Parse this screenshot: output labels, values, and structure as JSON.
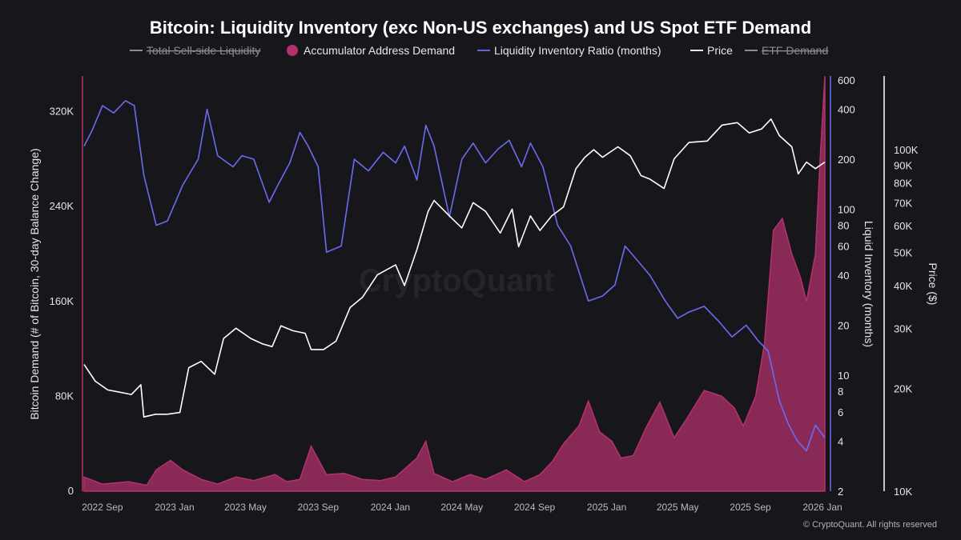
{
  "chart_data": {
    "type": "line",
    "title": "Bitcoin: Liquidity Inventory (exc Non-US exchanges) and US Spot ETF Demand",
    "legend": {
      "placement": "top-center",
      "items": [
        {
          "label": "Total Sell-side Liquidity",
          "color": "#9a9aa2",
          "marker": "line",
          "hidden": true
        },
        {
          "label": "Accumulator Address Demand",
          "color": "#b5316d",
          "marker": "dot",
          "hidden": false
        },
        {
          "label": "Liquidity Inventory Ratio (months)",
          "color": "#6b6bf2",
          "marker": "line",
          "hidden": false
        },
        {
          "label": "Price",
          "color": "#ffffff",
          "marker": "line",
          "hidden": false
        },
        {
          "label": "ETF Demand",
          "color": "#9a9aa2",
          "marker": "line",
          "hidden": true
        }
      ]
    },
    "x_ticks": [
      "2022 Sep",
      "2023 Jan",
      "2023 May",
      "2023 Sep",
      "2024 Jan",
      "2024 May",
      "2024 Sep",
      "2025 Jan",
      "2025 May",
      "2025 Sep",
      "2026 Jan"
    ],
    "y_left": {
      "label": "Bitcoin Demand (# of Bitcoin, 30-day Balance Change)",
      "ticks": [
        "0",
        "80K",
        "160K",
        "240K",
        "320K"
      ],
      "range": [
        0,
        340000
      ]
    },
    "y_right1": {
      "label": "Liquid Inventory (months)",
      "scale": "log",
      "ticks": [
        "2",
        "4",
        "6",
        "8",
        "10",
        "20",
        "40",
        "60",
        "80",
        "100",
        "200",
        "400",
        "600"
      ],
      "range": [
        2,
        600
      ]
    },
    "y_right2": {
      "label": "Price ($)",
      "scale": "log",
      "ticks": [
        "10K",
        "20K",
        "30K",
        "40K",
        "50K",
        "60K",
        "70K",
        "80K",
        "90K",
        "100K"
      ],
      "range": [
        10000,
        160000
      ]
    },
    "grid": false,
    "x_range": [
      "2022-08-01",
      "2026-01-05"
    ],
    "series": [
      {
        "name": "Accumulator Address Demand",
        "kind": "area",
        "axis": "left",
        "color": "#b5316d",
        "x": [
          "2022-08-01",
          "2022-09-01",
          "2022-10-15",
          "2022-11-15",
          "2022-12-01",
          "2022-12-25",
          "2023-01-15",
          "2023-02-15",
          "2023-03-15",
          "2023-04-15",
          "2023-05-15",
          "2023-06-20",
          "2023-07-10",
          "2023-08-01",
          "2023-08-20",
          "2023-09-15",
          "2023-10-15",
          "2023-11-15",
          "2023-12-15",
          "2024-01-10",
          "2024-02-15",
          "2024-03-01",
          "2024-03-15",
          "2024-04-15",
          "2024-05-15",
          "2024-06-10",
          "2024-07-15",
          "2024-08-15",
          "2024-09-10",
          "2024-10-01",
          "2024-10-20",
          "2024-11-15",
          "2024-12-01",
          "2024-12-20",
          "2025-01-10",
          "2025-01-25",
          "2025-02-15",
          "2025-03-10",
          "2025-04-01",
          "2025-04-25",
          "2025-05-15",
          "2025-06-15",
          "2025-07-15",
          "2025-08-05",
          "2025-08-20",
          "2025-09-10",
          "2025-09-25",
          "2025-10-10",
          "2025-10-25",
          "2025-11-10",
          "2025-11-25",
          "2025-12-05",
          "2025-12-20",
          "2025-12-28",
          "2026-01-05"
        ],
        "values": [
          12000,
          6000,
          8000,
          5000,
          18000,
          26000,
          18000,
          10000,
          6000,
          12000,
          9000,
          14000,
          8000,
          10000,
          38000,
          14000,
          15000,
          10000,
          9000,
          12000,
          28000,
          42000,
          15000,
          8000,
          14000,
          10000,
          18000,
          8000,
          14000,
          25000,
          40000,
          55000,
          76000,
          50000,
          42000,
          28000,
          30000,
          55000,
          75000,
          45000,
          60000,
          85000,
          80000,
          70000,
          55000,
          80000,
          125000,
          220000,
          230000,
          200000,
          180000,
          160000,
          200000,
          280000,
          350000
        ]
      },
      {
        "name": "Liquidity Inventory Ratio (months)",
        "kind": "line",
        "axis": "right1",
        "color": "#6b6bf2",
        "x": [
          "2022-08-01",
          "2022-08-15",
          "2022-09-01",
          "2022-09-20",
          "2022-10-10",
          "2022-10-25",
          "2022-11-10",
          "2022-12-01",
          "2022-12-20",
          "2023-01-15",
          "2023-02-10",
          "2023-02-25",
          "2023-03-15",
          "2023-04-10",
          "2023-04-25",
          "2023-05-15",
          "2023-06-10",
          "2023-06-25",
          "2023-07-15",
          "2023-08-01",
          "2023-08-15",
          "2023-09-01",
          "2023-09-15",
          "2023-10-10",
          "2023-11-01",
          "2023-11-25",
          "2023-12-20",
          "2024-01-10",
          "2024-01-25",
          "2024-02-15",
          "2024-03-01",
          "2024-03-15",
          "2024-04-10",
          "2024-05-01",
          "2024-05-20",
          "2024-06-10",
          "2024-07-01",
          "2024-07-20",
          "2024-08-10",
          "2024-08-25",
          "2024-09-15",
          "2024-10-10",
          "2024-11-01",
          "2024-12-01",
          "2024-12-25",
          "2025-01-15",
          "2025-02-01",
          "2025-02-20",
          "2025-03-15",
          "2025-04-10",
          "2025-05-01",
          "2025-05-20",
          "2025-06-15",
          "2025-07-10",
          "2025-08-01",
          "2025-08-25",
          "2025-09-15",
          "2025-10-01",
          "2025-10-20",
          "2025-11-05",
          "2025-11-20",
          "2025-12-05",
          "2025-12-20",
          "2026-01-05"
        ],
        "values": [
          240,
          300,
          420,
          380,
          450,
          420,
          160,
          80,
          85,
          140,
          200,
          400,
          210,
          180,
          210,
          200,
          110,
          140,
          190,
          290,
          240,
          180,
          55,
          60,
          200,
          170,
          220,
          190,
          240,
          150,
          320,
          240,
          90,
          200,
          250,
          190,
          230,
          260,
          180,
          250,
          180,
          80,
          60,
          28,
          30,
          35,
          60,
          50,
          40,
          28,
          22,
          24,
          26,
          21,
          17,
          20,
          16,
          14,
          7,
          5,
          4,
          3.5,
          5,
          4.2
        ]
      },
      {
        "name": "Price",
        "kind": "line",
        "axis": "right2",
        "color": "#ffffff",
        "x": [
          "2022-08-01",
          "2022-08-20",
          "2022-09-10",
          "2022-09-30",
          "2022-10-20",
          "2022-11-05",
          "2022-11-10",
          "2022-11-30",
          "2022-12-20",
          "2023-01-10",
          "2023-01-25",
          "2023-02-15",
          "2023-03-10",
          "2023-03-25",
          "2023-04-15",
          "2023-05-10",
          "2023-05-30",
          "2023-06-15",
          "2023-06-30",
          "2023-07-20",
          "2023-08-10",
          "2023-08-20",
          "2023-09-10",
          "2023-10-01",
          "2023-10-25",
          "2023-11-15",
          "2023-12-10",
          "2024-01-10",
          "2024-01-25",
          "2024-02-15",
          "2024-03-05",
          "2024-03-15",
          "2024-04-10",
          "2024-05-01",
          "2024-05-20",
          "2024-06-10",
          "2024-07-05",
          "2024-07-25",
          "2024-08-05",
          "2024-08-25",
          "2024-09-10",
          "2024-09-30",
          "2024-10-20",
          "2024-11-10",
          "2024-11-25",
          "2024-12-10",
          "2024-12-25",
          "2025-01-20",
          "2025-02-10",
          "2025-02-28",
          "2025-03-15",
          "2025-04-08",
          "2025-04-25",
          "2025-05-20",
          "2025-06-20",
          "2025-07-15",
          "2025-08-10",
          "2025-08-30",
          "2025-09-20",
          "2025-10-06",
          "2025-10-20",
          "2025-11-10",
          "2025-11-21",
          "2025-12-05",
          "2025-12-20",
          "2026-01-05"
        ],
        "values": [
          23500,
          21000,
          19800,
          19500,
          19200,
          20500,
          16500,
          16800,
          16800,
          17000,
          23000,
          24000,
          22000,
          28000,
          30000,
          28000,
          27000,
          26500,
          30500,
          29500,
          29000,
          26000,
          26000,
          27500,
          34500,
          37000,
          43000,
          46000,
          40000,
          51000,
          66000,
          71000,
          64000,
          59000,
          70000,
          66000,
          57000,
          67000,
          52000,
          64000,
          58000,
          64000,
          68000,
          88000,
          95000,
          100000,
          95000,
          102000,
          96000,
          84000,
          82000,
          77000,
          94000,
          105000,
          106000,
          118000,
          120000,
          112000,
          115000,
          123000,
          110000,
          102000,
          85000,
          92000,
          88000,
          92000
        ]
      }
    ]
  },
  "watermark": "CryptoQuant",
  "copyright": "© CryptoQuant. All rights reserved"
}
